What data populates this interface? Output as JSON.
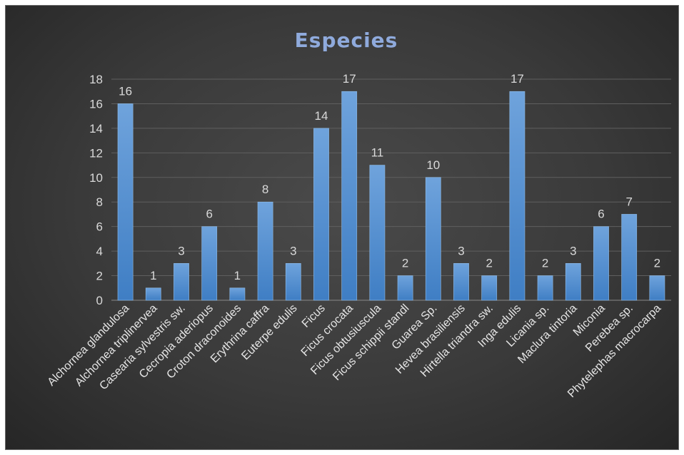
{
  "chart_data": {
    "type": "bar",
    "title": "Especies",
    "xlabel": "",
    "ylabel": "",
    "ylim": [
      0,
      18
    ],
    "yticks": [
      0,
      2,
      4,
      6,
      8,
      10,
      12,
      14,
      16,
      18
    ],
    "grid": true,
    "legend": "none",
    "categories": [
      "Alchornea glandulosa",
      "Alchornea triplinervea",
      "Casearia sylvestris sw.",
      "Cecropia aderiopus",
      "Croton draconoides",
      "Erythrina caffra",
      "Euterpe edulis",
      "Ficus",
      "Ficus crocata",
      "Ficus obtusiuscula",
      "Ficus schippii standl",
      "Guarea  Sp.",
      "Hevea brasiliensis",
      "Hirtella triandra sw.",
      "Inga edulis",
      "Licania sp.",
      "Maclura tintoria",
      "Miconia",
      "Perebea sp.",
      "Phytelephas macrocarpa"
    ],
    "values": [
      16,
      1,
      3,
      6,
      1,
      8,
      3,
      14,
      17,
      11,
      2,
      10,
      3,
      2,
      17,
      2,
      3,
      6,
      7,
      2
    ],
    "colors": {
      "bar_top": "#6fa3dc",
      "bar_bottom": "#3f7ec4",
      "bar_edge": "#8fbce8",
      "title": "#8faadc",
      "background": "#3a3a3a"
    }
  }
}
